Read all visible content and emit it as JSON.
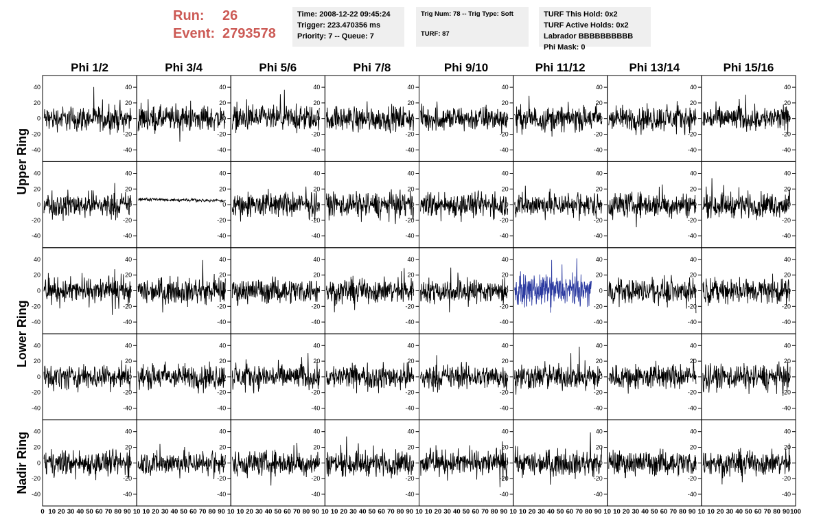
{
  "header": {
    "run_label": "Run:",
    "run_value": "26",
    "event_label": "Event:",
    "event_value": "2793578",
    "time_line": "Time: 2008-12-22 09:45:24",
    "trigger_line": "Trigger: 223.470356 ms",
    "priority_line": "Priority: 7 -- Queue: 7",
    "trig_line": "Trig Num: 78 -- Trig Type: Soft",
    "turf_line": "TURF: 87",
    "hold_line": "TURF This Hold: 0x2",
    "active_holds_line": "TURF Active Holds: 0x2",
    "labrador_line": "Labrador BBBBBBBBBB",
    "phi_mask_line": "Phi Mask: 0"
  },
  "colors": {
    "trace": "#000000",
    "highlight_trace": "#2b3aa0",
    "run_text": "#cc5a55",
    "box_bg": "#efefef"
  },
  "columns": [
    "Phi 1/2",
    "Phi 3/4",
    "Phi 5/6",
    "Phi 7/8",
    "Phi 9/10",
    "Phi 11/12",
    "Phi 13/14",
    "Phi 15/16"
  ],
  "row_groups": [
    {
      "label": "Upper Ring",
      "rows": [
        0,
        1
      ]
    },
    {
      "label": "Lower Ring",
      "rows": [
        2,
        3
      ]
    },
    {
      "label": "Nadir Ring",
      "rows": [
        4
      ]
    }
  ],
  "chart_data": {
    "type": "line",
    "xlim": [
      0,
      100
    ],
    "ylim": [
      -55,
      55
    ],
    "y_ticks": [
      "40",
      "20",
      "0",
      "-20",
      "-40"
    ],
    "y_tick_values": [
      40,
      20,
      0,
      -20,
      -40
    ],
    "x_ticks_first": [
      "0",
      "10",
      "20",
      "30",
      "40",
      "50",
      "60",
      "70",
      "80",
      "90",
      "10"
    ],
    "x_ticks": [
      "10",
      "20",
      "30",
      "40",
      "50",
      "60",
      "70",
      "80",
      "90",
      "10"
    ],
    "x_ticks_last": [
      "10",
      "20",
      "30",
      "40",
      "50",
      "60",
      "70",
      "80",
      "90",
      "100"
    ],
    "panels_note_amplitudes": {
      "default": 20,
      "quiet": [
        [
          1,
          1,
          4
        ]
      ],
      "highlight": [
        [
          2,
          5,
          24
        ]
      ]
    }
  }
}
